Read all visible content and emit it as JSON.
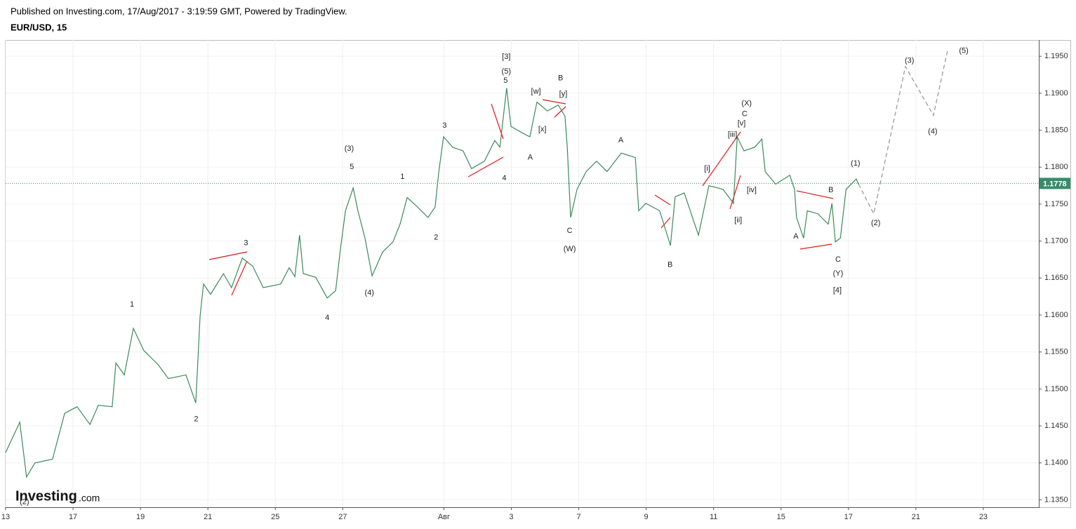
{
  "header": {
    "published": "Published on Investing.com, 17/Aug/2017 - 3:19:59 GMT, Powered by TradingView."
  },
  "logo": {
    "brand": "Investing",
    "suffix": ".com"
  },
  "chart_data": {
    "type": "line",
    "title": "EUR/USD, 15",
    "xlim": [
      0,
      30.646
    ],
    "ylim": [
      1.134,
      1.1972
    ],
    "xticks": [
      {
        "value": 0,
        "label": "13"
      },
      {
        "value": 2,
        "label": "17"
      },
      {
        "value": 4,
        "label": "19"
      },
      {
        "value": 6,
        "label": "21"
      },
      {
        "value": 8,
        "label": "25"
      },
      {
        "value": 10,
        "label": "27"
      },
      {
        "value": 13,
        "label": "Авг"
      },
      {
        "value": 15,
        "label": "3"
      },
      {
        "value": 17,
        "label": "7"
      },
      {
        "value": 19,
        "label": "9"
      },
      {
        "value": 21,
        "label": "11"
      },
      {
        "value": 23,
        "label": "15"
      },
      {
        "value": 25,
        "label": "17"
      },
      {
        "value": 27,
        "label": "21"
      },
      {
        "value": 29,
        "label": "23"
      }
    ],
    "yticks": [
      {
        "value": 1.135,
        "label": "1.1350"
      },
      {
        "value": 1.14,
        "label": "1.1400"
      },
      {
        "value": 1.145,
        "label": "1.1450"
      },
      {
        "value": 1.15,
        "label": "1.1500"
      },
      {
        "value": 1.155,
        "label": "1.1550"
      },
      {
        "value": 1.16,
        "label": "1.1600"
      },
      {
        "value": 1.165,
        "label": "1.1650"
      },
      {
        "value": 1.17,
        "label": "1.1700"
      },
      {
        "value": 1.175,
        "label": "1.1750"
      },
      {
        "value": 1.18,
        "label": "1.1800"
      },
      {
        "value": 1.185,
        "label": "1.1850"
      },
      {
        "value": 1.19,
        "label": "1.1900"
      },
      {
        "value": 1.195,
        "label": "1.1950"
      }
    ],
    "grid": true,
    "series": [
      {
        "color": "#3c8a5c",
        "dashed": false,
        "x": [
          0,
          0.42,
          0.62,
          0.87,
          1.39,
          1.75,
          2.12,
          2.5,
          2.75,
          3.16,
          3.27,
          3.52,
          3.79,
          4.1,
          4.52,
          4.83,
          5.35,
          5.64,
          5.77,
          5.87,
          6.08,
          6.46,
          6.7,
          7.02,
          7.33,
          7.64,
          8.16,
          8.41,
          8.58,
          8.72,
          8.83,
          9.2,
          9.54,
          9.79,
          9.93,
          10.08,
          10.31,
          10.45,
          10.66,
          10.87,
          11.18,
          11.49,
          11.7,
          11.91,
          12.22,
          12.53,
          12.74,
          12.85,
          12.99,
          13.26,
          13.57,
          13.82,
          14.2,
          14.51,
          14.66,
          14.86,
          14.99,
          15.34,
          15.55,
          15.76,
          16.07,
          16.39,
          16.59,
          16.66,
          16.76,
          16.95,
          17.22,
          17.53,
          17.84,
          18.26,
          18.68,
          18.78,
          18.99,
          19.4,
          19.72,
          19.86,
          20.13,
          20.55,
          20.86,
          21.28,
          21.59,
          21.7,
          21.9,
          22.22,
          22.43,
          22.53,
          22.84,
          23.26,
          23.4,
          23.46,
          23.67,
          23.78,
          24.09,
          24.4,
          24.51,
          24.61,
          24.76,
          24.93,
          25.23,
          25.3
        ],
        "values": [
          1.1414,
          1.1455,
          1.1381,
          1.14,
          1.1405,
          1.1467,
          1.1476,
          1.1452,
          1.1478,
          1.1476,
          1.1535,
          1.1519,
          1.1582,
          1.1552,
          1.1533,
          1.1514,
          1.1519,
          1.1481,
          1.1599,
          1.1642,
          1.1628,
          1.1656,
          1.1637,
          1.1677,
          1.1666,
          1.1637,
          1.1642,
          1.1664,
          1.1652,
          1.1708,
          1.1656,
          1.1651,
          1.1623,
          1.1633,
          1.1689,
          1.1741,
          1.1772,
          1.1741,
          1.1704,
          1.1653,
          1.1685,
          1.1699,
          1.1723,
          1.1759,
          1.1746,
          1.1732,
          1.1746,
          1.1794,
          1.1841,
          1.1827,
          1.1822,
          1.1798,
          1.1808,
          1.1836,
          1.1827,
          1.1907,
          1.1855,
          1.1846,
          1.1841,
          1.1888,
          1.1876,
          1.1884,
          1.1869,
          1.1827,
          1.1732,
          1.177,
          1.1794,
          1.1808,
          1.1794,
          1.1819,
          1.1813,
          1.1741,
          1.1751,
          1.1741,
          1.1694,
          1.176,
          1.1765,
          1.1708,
          1.1775,
          1.177,
          1.1751,
          1.1841,
          1.1822,
          1.1827,
          1.1838,
          1.1794,
          1.1777,
          1.1789,
          1.177,
          1.1732,
          1.1704,
          1.1741,
          1.1737,
          1.1723,
          1.1751,
          1.1699,
          1.1704,
          1.177,
          1.1784,
          1.1777
        ]
      },
      {
        "color": "#9a9a9a",
        "dashed": true,
        "x": [
          25.3,
          25.75,
          26.69,
          27.52,
          27.94
        ],
        "values": [
          1.1777,
          1.1737,
          1.1936,
          1.187,
          1.1958
        ]
      }
    ],
    "last_price": 1.1778,
    "last_price_color": "#3a8a6c",
    "annotations": [
      {
        "text": "(2)",
        "x": 0.56,
        "y": 1.1347
      },
      {
        "text": "1",
        "x": 3.75,
        "y": 1.1614
      },
      {
        "text": "2",
        "x": 5.65,
        "y": 1.1459
      },
      {
        "text": "3",
        "x": 7.13,
        "y": 1.1697
      },
      {
        "text": "4",
        "x": 9.54,
        "y": 1.1596
      },
      {
        "text": "(3)",
        "x": 10.19,
        "y": 1.1825
      },
      {
        "text": "5",
        "x": 10.27,
        "y": 1.18
      },
      {
        "text": "(4)",
        "x": 10.79,
        "y": 1.163
      },
      {
        "text": "1",
        "x": 11.77,
        "y": 1.1787
      },
      {
        "text": "2",
        "x": 12.77,
        "y": 1.1705
      },
      {
        "text": "3",
        "x": 13.02,
        "y": 1.1856
      },
      {
        "text": "4",
        "x": 14.79,
        "y": 1.1785
      },
      {
        "text": "[3]",
        "x": 14.85,
        "y": 1.1949
      },
      {
        "text": "(5)",
        "x": 14.85,
        "y": 1.1929
      },
      {
        "text": "5",
        "x": 14.83,
        "y": 1.1917
      },
      {
        "text": "A",
        "x": 15.56,
        "y": 1.1813
      },
      {
        "text": "[w]",
        "x": 15.73,
        "y": 1.1902
      },
      {
        "text": "[x]",
        "x": 15.92,
        "y": 1.1851
      },
      {
        "text": "B",
        "x": 16.46,
        "y": 1.192
      },
      {
        "text": "[y]",
        "x": 16.54,
        "y": 1.1899
      },
      {
        "text": "C",
        "x": 16.73,
        "y": 1.1714
      },
      {
        "text": "(W)",
        "x": 16.73,
        "y": 1.1689
      },
      {
        "text": "A",
        "x": 18.25,
        "y": 1.1836
      },
      {
        "text": "B",
        "x": 19.71,
        "y": 1.1668
      },
      {
        "text": "[i]",
        "x": 20.81,
        "y": 1.1798
      },
      {
        "text": "[ii]",
        "x": 21.73,
        "y": 1.1728
      },
      {
        "text": "[iii]",
        "x": 21.56,
        "y": 1.1844
      },
      {
        "text": "[iv]",
        "x": 22.13,
        "y": 1.1769
      },
      {
        "text": "[v]",
        "x": 21.83,
        "y": 1.1859
      },
      {
        "text": "C",
        "x": 21.92,
        "y": 1.1872
      },
      {
        "text": "(X)",
        "x": 21.98,
        "y": 1.1886
      },
      {
        "text": "A",
        "x": 23.44,
        "y": 1.1706
      },
      {
        "text": "B",
        "x": 24.48,
        "y": 1.1769
      },
      {
        "text": "C",
        "x": 24.69,
        "y": 1.1675
      },
      {
        "text": "(Y)",
        "x": 24.69,
        "y": 1.1656
      },
      {
        "text": "[4]",
        "x": 24.67,
        "y": 1.1633
      },
      {
        "text": "(1)",
        "x": 25.21,
        "y": 1.1805
      },
      {
        "text": "(2)",
        "x": 25.81,
        "y": 1.1724
      },
      {
        "text": "(3)",
        "x": 26.81,
        "y": 1.1944
      },
      {
        "text": "(4)",
        "x": 27.5,
        "y": 1.1848
      },
      {
        "text": "(5)",
        "x": 28.42,
        "y": 1.1957
      }
    ]
  }
}
